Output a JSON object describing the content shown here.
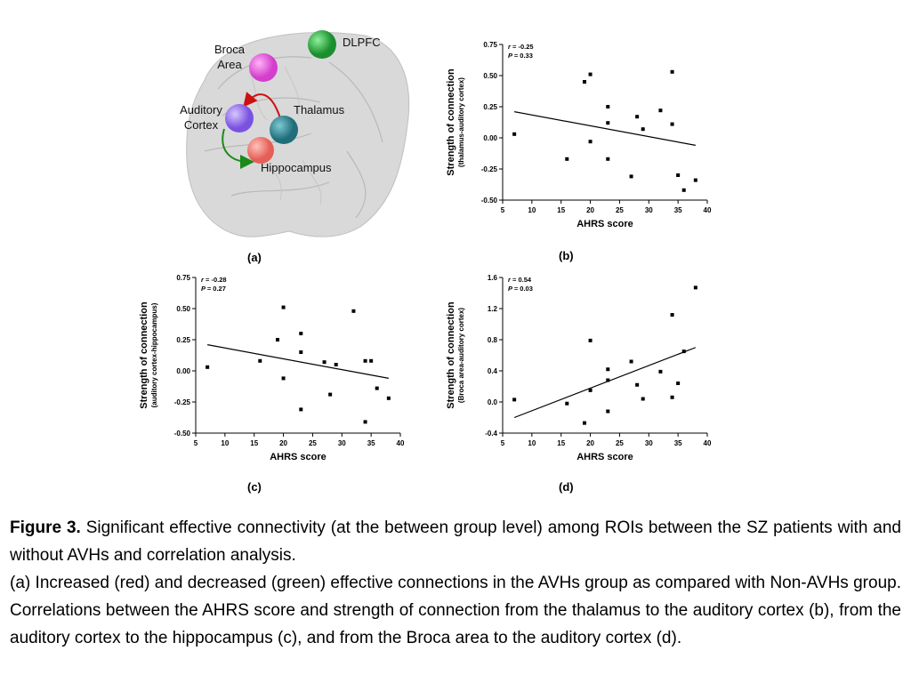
{
  "brain": {
    "regions": [
      {
        "key": "dlpfc",
        "label": "DLPFC",
        "color": "#22a83a"
      },
      {
        "key": "broca",
        "label": "Broca\nArea",
        "color": "#e85ce0"
      },
      {
        "key": "auditory",
        "label": "Auditory\nCortex",
        "color": "#9b72f0"
      },
      {
        "key": "thalamus",
        "label": "Thalamus",
        "color": "#2f8d9a"
      },
      {
        "key": "hippocampus",
        "label": "Hippocampus",
        "color": "#f07f78"
      }
    ],
    "arrows": [
      {
        "from": "thalamus",
        "to": "auditory",
        "color": "#cc1111"
      },
      {
        "from": "auditory",
        "to": "hippocampus",
        "color": "#1a8a1a"
      }
    ]
  },
  "panel_labels": {
    "a": "(a)",
    "b": "(b)",
    "c": "(c)",
    "d": "(d)"
  },
  "chart_data": [
    {
      "panel": "b",
      "type": "scatter",
      "xlabel": "AHRS score",
      "ylabel": "Strength of connection",
      "ylabel_sub": "(thalamus-auditory cortex)",
      "xlim": [
        5,
        40
      ],
      "ylim": [
        -0.5,
        0.75
      ],
      "xticks": [
        5,
        10,
        15,
        20,
        25,
        30,
        35,
        40
      ],
      "yticks": [
        -0.5,
        -0.25,
        0.0,
        0.25,
        0.5,
        0.75
      ],
      "ytick_labels": [
        "-0.50",
        "-0.25",
        "0.00",
        "0.25",
        "0.50",
        "0.75"
      ],
      "stats": {
        "r": "= -0.25",
        "P": "= 0.33"
      },
      "points": [
        [
          7,
          0.03
        ],
        [
          16,
          -0.17
        ],
        [
          19,
          0.45
        ],
        [
          20,
          0.51
        ],
        [
          20,
          -0.03
        ],
        [
          23,
          0.25
        ],
        [
          23,
          0.12
        ],
        [
          23,
          -0.17
        ],
        [
          27,
          -0.31
        ],
        [
          28,
          0.17
        ],
        [
          29,
          0.07
        ],
        [
          32,
          0.22
        ],
        [
          34,
          0.53
        ],
        [
          34,
          0.11
        ],
        [
          35,
          -0.3
        ],
        [
          36,
          -0.42
        ],
        [
          38,
          -0.34
        ]
      ],
      "fit": [
        [
          7,
          0.21
        ],
        [
          38,
          -0.06
        ]
      ]
    },
    {
      "panel": "c",
      "type": "scatter",
      "xlabel": "AHRS score",
      "ylabel": "Strength of connection",
      "ylabel_sub": "(auditory cortex-hippocampus)",
      "xlim": [
        5,
        40
      ],
      "ylim": [
        -0.5,
        0.75
      ],
      "xticks": [
        5,
        10,
        15,
        20,
        25,
        30,
        35,
        40
      ],
      "yticks": [
        -0.5,
        -0.25,
        0.0,
        0.25,
        0.5,
        0.75
      ],
      "ytick_labels": [
        "-0.50",
        "-0.25",
        "0.00",
        "0.25",
        "0.50",
        "0.75"
      ],
      "stats": {
        "r": "= -0.28",
        "P": "= 0.27"
      },
      "points": [
        [
          7,
          0.03
        ],
        [
          16,
          0.08
        ],
        [
          19,
          0.25
        ],
        [
          20,
          0.51
        ],
        [
          20,
          -0.06
        ],
        [
          23,
          0.3
        ],
        [
          23,
          0.15
        ],
        [
          23,
          -0.31
        ],
        [
          27,
          0.07
        ],
        [
          28,
          -0.19
        ],
        [
          29,
          0.05
        ],
        [
          32,
          0.48
        ],
        [
          34,
          0.08
        ],
        [
          35,
          0.08
        ],
        [
          34,
          -0.41
        ],
        [
          36,
          -0.14
        ],
        [
          38,
          -0.22
        ]
      ],
      "fit": [
        [
          7,
          0.21
        ],
        [
          38,
          -0.06
        ]
      ]
    },
    {
      "panel": "d",
      "type": "scatter",
      "xlabel": "AHRS score",
      "ylabel": "Strength of connection",
      "ylabel_sub": "(Broca area-auditory cortex)",
      "xlim": [
        5,
        40
      ],
      "ylim": [
        -0.4,
        1.6
      ],
      "xticks": [
        5,
        10,
        15,
        20,
        25,
        30,
        35,
        40
      ],
      "yticks": [
        -0.4,
        0.0,
        0.4,
        0.8,
        1.2,
        1.6
      ],
      "ytick_labels": [
        "-0.4",
        "0.0",
        "0.4",
        "0.8",
        "1.2",
        "1.6"
      ],
      "stats": {
        "r": "= 0.54",
        "P": "= 0.03"
      },
      "points": [
        [
          7,
          0.03
        ],
        [
          16,
          -0.02
        ],
        [
          19,
          -0.27
        ],
        [
          20,
          0.79
        ],
        [
          20,
          0.15
        ],
        [
          23,
          0.42
        ],
        [
          23,
          0.28
        ],
        [
          23,
          -0.12
        ],
        [
          27,
          0.52
        ],
        [
          28,
          0.22
        ],
        [
          29,
          0.04
        ],
        [
          32,
          0.39
        ],
        [
          34,
          1.12
        ],
        [
          34,
          0.06
        ],
        [
          35,
          0.24
        ],
        [
          36,
          0.65
        ],
        [
          38,
          1.47
        ]
      ],
      "fit": [
        [
          7,
          -0.2
        ],
        [
          38,
          0.7
        ]
      ]
    }
  ],
  "caption": {
    "fig_label": "Figure 3.",
    "line1": " Significant effective connectivity (at the between group level) among ROIs between the SZ patients with and without AVHs and correlation analysis.",
    "line2": "(a) Increased (red) and decreased (green) effective connections in the AVHs group as compared with Non-AVHs group. Correlations between the AHRS score and strength of connection from the thalamus to the auditory cortex (b), from the auditory cortex to the hippocampus (c), and from the Broca area to the auditory cortex (d)."
  }
}
